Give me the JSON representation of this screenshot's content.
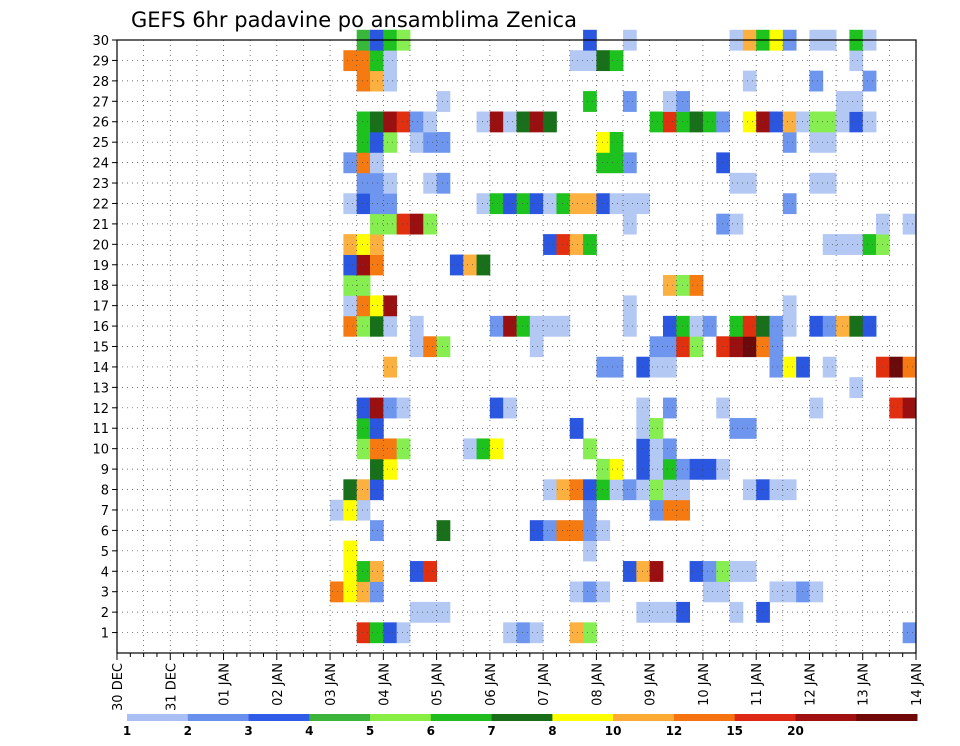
{
  "chart_data": {
    "type": "heatmap",
    "title": "GEFS 6hr padavine po ansamblima Zenica",
    "y_categories": [
      "1",
      "2",
      "3",
      "4",
      "5",
      "6",
      "7",
      "8",
      "9",
      "10",
      "11",
      "12",
      "13",
      "14",
      "15",
      "16",
      "17",
      "18",
      "19",
      "20",
      "21",
      "22",
      "23",
      "24",
      "25",
      "26",
      "27",
      "28",
      "29",
      "30"
    ],
    "x_tick_labels": [
      "30 DEC",
      "31 DEC",
      "01 JAN",
      "02 JAN",
      "03 JAN",
      "04 JAN",
      "05 JAN",
      "06 JAN",
      "07 JAN",
      "08 JAN",
      "09 JAN",
      "10 JAN",
      "11 JAN",
      "12 JAN",
      "13 JAN",
      "14 JAN"
    ],
    "steps_per_day": 4,
    "xlim": [
      0,
      60
    ],
    "ylim": [
      0,
      30
    ],
    "grid": true,
    "colorbar": {
      "labels": [
        "1",
        "2",
        "3",
        "4",
        "5",
        "6",
        "7",
        "8",
        "10",
        "12",
        "15",
        "20"
      ],
      "colors": [
        "#aac0f5",
        "#6a90ee",
        "#2e5be8",
        "#3cb43c",
        "#88ee44",
        "#1fbb1f",
        "#1a6e1a",
        "#ffff00",
        "#fbaa33",
        "#f57310",
        "#dc2815",
        "#a01010",
        "#700808"
      ]
    },
    "level_colors": {
      "1": "#b4c8f4",
      "2": "#6e96ee",
      "3": "#2b57e0",
      "4": "#38b73a",
      "5": "#86ee50",
      "6": "#1ec21e",
      "7": "#18701a",
      "8": "#ffff00",
      "10": "#fbb040",
      "12": "#f57a12",
      "15": "#e03010",
      "20": "#9a1010",
      "25": "#6a0a0a"
    },
    "rows": {
      "30": [
        [
          19,
          4
        ],
        [
          20,
          3
        ],
        [
          21,
          6
        ],
        [
          22,
          5
        ],
        [
          36,
          3
        ],
        [
          39,
          1
        ],
        [
          47,
          1
        ],
        [
          48,
          10
        ],
        [
          49,
          6
        ],
        [
          50,
          8
        ],
        [
          51,
          2
        ],
        [
          53,
          1
        ],
        [
          54,
          1
        ],
        [
          56,
          6
        ],
        [
          57,
          1
        ]
      ],
      "29": [
        [
          18,
          12
        ],
        [
          19,
          12
        ],
        [
          20,
          6
        ],
        [
          21,
          1
        ],
        [
          35,
          1
        ],
        [
          36,
          1
        ],
        [
          37,
          7
        ],
        [
          38,
          6
        ],
        [
          56,
          1
        ]
      ],
      "28": [
        [
          19,
          12
        ],
        [
          20,
          10
        ],
        [
          21,
          1
        ],
        [
          48,
          1
        ],
        [
          53,
          2
        ],
        [
          57,
          2
        ]
      ],
      "27": [
        [
          25,
          1
        ],
        [
          36,
          6
        ],
        [
          39,
          2
        ],
        [
          42,
          1
        ],
        [
          43,
          2
        ],
        [
          55,
          1
        ],
        [
          56,
          1
        ]
      ],
      "26": [
        [
          19,
          6
        ],
        [
          20,
          7
        ],
        [
          21,
          20
        ],
        [
          22,
          15
        ],
        [
          23,
          2
        ],
        [
          24,
          1
        ],
        [
          28,
          1
        ],
        [
          29,
          20
        ],
        [
          30,
          1
        ],
        [
          31,
          7
        ],
        [
          32,
          20
        ],
        [
          33,
          7
        ],
        [
          41,
          6
        ],
        [
          42,
          15
        ],
        [
          43,
          6
        ],
        [
          44,
          7
        ],
        [
          45,
          6
        ],
        [
          46,
          2
        ],
        [
          48,
          8
        ],
        [
          49,
          20
        ],
        [
          50,
          3
        ],
        [
          51,
          10
        ],
        [
          52,
          1
        ],
        [
          53,
          5
        ],
        [
          54,
          5
        ],
        [
          55,
          1
        ],
        [
          56,
          3
        ],
        [
          57,
          1
        ]
      ],
      "25": [
        [
          19,
          6
        ],
        [
          20,
          3
        ],
        [
          21,
          5
        ],
        [
          23,
          1
        ],
        [
          24,
          2
        ],
        [
          25,
          2
        ],
        [
          37,
          8
        ],
        [
          38,
          6
        ],
        [
          51,
          2
        ],
        [
          53,
          1
        ],
        [
          54,
          1
        ]
      ],
      "24": [
        [
          18,
          2
        ],
        [
          19,
          12
        ],
        [
          20,
          1
        ],
        [
          37,
          6
        ],
        [
          38,
          6
        ],
        [
          39,
          2
        ],
        [
          46,
          3
        ]
      ],
      "23": [
        [
          19,
          2
        ],
        [
          20,
          2
        ],
        [
          21,
          1
        ],
        [
          24,
          1
        ],
        [
          25,
          2
        ],
        [
          47,
          1
        ],
        [
          48,
          1
        ],
        [
          53,
          1
        ],
        [
          54,
          1
        ]
      ],
      "22": [
        [
          18,
          1
        ],
        [
          19,
          3
        ],
        [
          20,
          2
        ],
        [
          21,
          2
        ],
        [
          28,
          1
        ],
        [
          29,
          6
        ],
        [
          30,
          3
        ],
        [
          31,
          6
        ],
        [
          32,
          3
        ],
        [
          33,
          1
        ],
        [
          34,
          6
        ],
        [
          35,
          10
        ],
        [
          36,
          10
        ],
        [
          37,
          3
        ],
        [
          38,
          1
        ],
        [
          39,
          1
        ],
        [
          40,
          1
        ],
        [
          51,
          2
        ]
      ],
      "21": [
        [
          20,
          5
        ],
        [
          21,
          5
        ],
        [
          22,
          15
        ],
        [
          23,
          20
        ],
        [
          24,
          5
        ],
        [
          39,
          1
        ],
        [
          46,
          2
        ],
        [
          47,
          1
        ],
        [
          58,
          1
        ],
        [
          60,
          1
        ]
      ],
      "20": [
        [
          18,
          10
        ],
        [
          19,
          8
        ],
        [
          20,
          10
        ],
        [
          33,
          3
        ],
        [
          34,
          15
        ],
        [
          35,
          10
        ],
        [
          36,
          6
        ],
        [
          54,
          1
        ],
        [
          55,
          1
        ],
        [
          56,
          1
        ],
        [
          57,
          6
        ],
        [
          58,
          5
        ]
      ],
      "19": [
        [
          18,
          3
        ],
        [
          19,
          20
        ],
        [
          20,
          12
        ],
        [
          26,
          3
        ],
        [
          27,
          10
        ],
        [
          28,
          7
        ]
      ],
      "18": [
        [
          18,
          5
        ],
        [
          19,
          5
        ],
        [
          42,
          10
        ],
        [
          43,
          5
        ],
        [
          44,
          12
        ]
      ],
      "17": [
        [
          18,
          1
        ],
        [
          19,
          12
        ],
        [
          20,
          8
        ],
        [
          21,
          20
        ],
        [
          39,
          1
        ],
        [
          51,
          1
        ]
      ],
      "16": [
        [
          18,
          12
        ],
        [
          19,
          5
        ],
        [
          20,
          7
        ],
        [
          21,
          1
        ],
        [
          23,
          1
        ],
        [
          29,
          2
        ],
        [
          30,
          20
        ],
        [
          31,
          6
        ],
        [
          32,
          1
        ],
        [
          33,
          1
        ],
        [
          34,
          1
        ],
        [
          39,
          1
        ],
        [
          42,
          3
        ],
        [
          43,
          6
        ],
        [
          44,
          1
        ],
        [
          45,
          2
        ],
        [
          47,
          6
        ],
        [
          48,
          15
        ],
        [
          49,
          7
        ],
        [
          50,
          2
        ],
        [
          51,
          1
        ],
        [
          53,
          3
        ],
        [
          54,
          2
        ],
        [
          55,
          10
        ],
        [
          56,
          7
        ],
        [
          57,
          3
        ]
      ],
      "15": [
        [
          23,
          1
        ],
        [
          24,
          12
        ],
        [
          25,
          5
        ],
        [
          32,
          1
        ],
        [
          41,
          2
        ],
        [
          42,
          2
        ],
        [
          43,
          15
        ],
        [
          44,
          5
        ],
        [
          46,
          15
        ],
        [
          47,
          20
        ],
        [
          48,
          25
        ],
        [
          49,
          12
        ],
        [
          50,
          2
        ]
      ],
      "14": [
        [
          21,
          10
        ],
        [
          37,
          2
        ],
        [
          38,
          2
        ],
        [
          40,
          3
        ],
        [
          41,
          1
        ],
        [
          42,
          1
        ],
        [
          50,
          2
        ],
        [
          51,
          8
        ],
        [
          52,
          3
        ],
        [
          54,
          1
        ],
        [
          58,
          15
        ],
        [
          59,
          25
        ],
        [
          60,
          12
        ]
      ],
      "13": [
        [
          56,
          1
        ]
      ],
      "12": [
        [
          19,
          3
        ],
        [
          20,
          20
        ],
        [
          21,
          2
        ],
        [
          22,
          1
        ],
        [
          29,
          3
        ],
        [
          30,
          1
        ],
        [
          40,
          1
        ],
        [
          42,
          2
        ],
        [
          46,
          1
        ],
        [
          53,
          1
        ],
        [
          59,
          15
        ],
        [
          60,
          20
        ]
      ],
      "11": [
        [
          19,
          6
        ],
        [
          20,
          3
        ],
        [
          35,
          3
        ],
        [
          40,
          1
        ],
        [
          41,
          5
        ],
        [
          47,
          2
        ],
        [
          48,
          2
        ]
      ],
      "10": [
        [
          19,
          5
        ],
        [
          20,
          12
        ],
        [
          21,
          12
        ],
        [
          22,
          5
        ],
        [
          27,
          1
        ],
        [
          28,
          6
        ],
        [
          29,
          8
        ],
        [
          36,
          5
        ],
        [
          40,
          3
        ],
        [
          41,
          1
        ],
        [
          42,
          2
        ]
      ],
      "9": [
        [
          20,
          7
        ],
        [
          21,
          8
        ],
        [
          37,
          5
        ],
        [
          38,
          8
        ],
        [
          40,
          3
        ],
        [
          41,
          1
        ],
        [
          42,
          6
        ],
        [
          43,
          2
        ],
        [
          44,
          3
        ],
        [
          45,
          3
        ],
        [
          46,
          1
        ]
      ],
      "8": [
        [
          18,
          7
        ],
        [
          19,
          10
        ],
        [
          20,
          3
        ],
        [
          33,
          1
        ],
        [
          34,
          10
        ],
        [
          35,
          12
        ],
        [
          36,
          3
        ],
        [
          37,
          6
        ],
        [
          38,
          1
        ],
        [
          39,
          2
        ],
        [
          40,
          1
        ],
        [
          41,
          5
        ],
        [
          42,
          1
        ],
        [
          43,
          1
        ],
        [
          48,
          1
        ],
        [
          49,
          3
        ],
        [
          50,
          1
        ],
        [
          51,
          1
        ]
      ],
      "7": [
        [
          17,
          1
        ],
        [
          18,
          8
        ],
        [
          19,
          1
        ],
        [
          36,
          2
        ],
        [
          41,
          2
        ],
        [
          42,
          12
        ],
        [
          43,
          12
        ]
      ],
      "6": [
        [
          20,
          2
        ],
        [
          25,
          7
        ],
        [
          32,
          3
        ],
        [
          33,
          2
        ],
        [
          34,
          12
        ],
        [
          35,
          12
        ],
        [
          36,
          2
        ],
        [
          37,
          1
        ]
      ],
      "5": [
        [
          18,
          8
        ],
        [
          36,
          1
        ]
      ],
      "4": [
        [
          18,
          8
        ],
        [
          19,
          6
        ],
        [
          20,
          10
        ],
        [
          23,
          3
        ],
        [
          24,
          15
        ],
        [
          39,
          3
        ],
        [
          40,
          10
        ],
        [
          41,
          20
        ],
        [
          44,
          3
        ],
        [
          45,
          2
        ],
        [
          46,
          5
        ],
        [
          47,
          1
        ],
        [
          48,
          1
        ]
      ],
      "3": [
        [
          17,
          12
        ],
        [
          18,
          8
        ],
        [
          19,
          10
        ],
        [
          20,
          2
        ],
        [
          35,
          1
        ],
        [
          36,
          2
        ],
        [
          37,
          1
        ],
        [
          45,
          1
        ],
        [
          46,
          1
        ],
        [
          50,
          1
        ],
        [
          51,
          1
        ],
        [
          52,
          2
        ],
        [
          53,
          1
        ]
      ],
      "2": [
        [
          23,
          1
        ],
        [
          24,
          1
        ],
        [
          25,
          1
        ],
        [
          40,
          1
        ],
        [
          41,
          1
        ],
        [
          42,
          1
        ],
        [
          43,
          3
        ],
        [
          47,
          1
        ],
        [
          49,
          3
        ]
      ],
      "1": [
        [
          19,
          15
        ],
        [
          20,
          6
        ],
        [
          21,
          3
        ],
        [
          22,
          1
        ],
        [
          30,
          1
        ],
        [
          31,
          2
        ],
        [
          32,
          1
        ],
        [
          35,
          10
        ],
        [
          36,
          5
        ],
        [
          60,
          2
        ]
      ]
    }
  }
}
